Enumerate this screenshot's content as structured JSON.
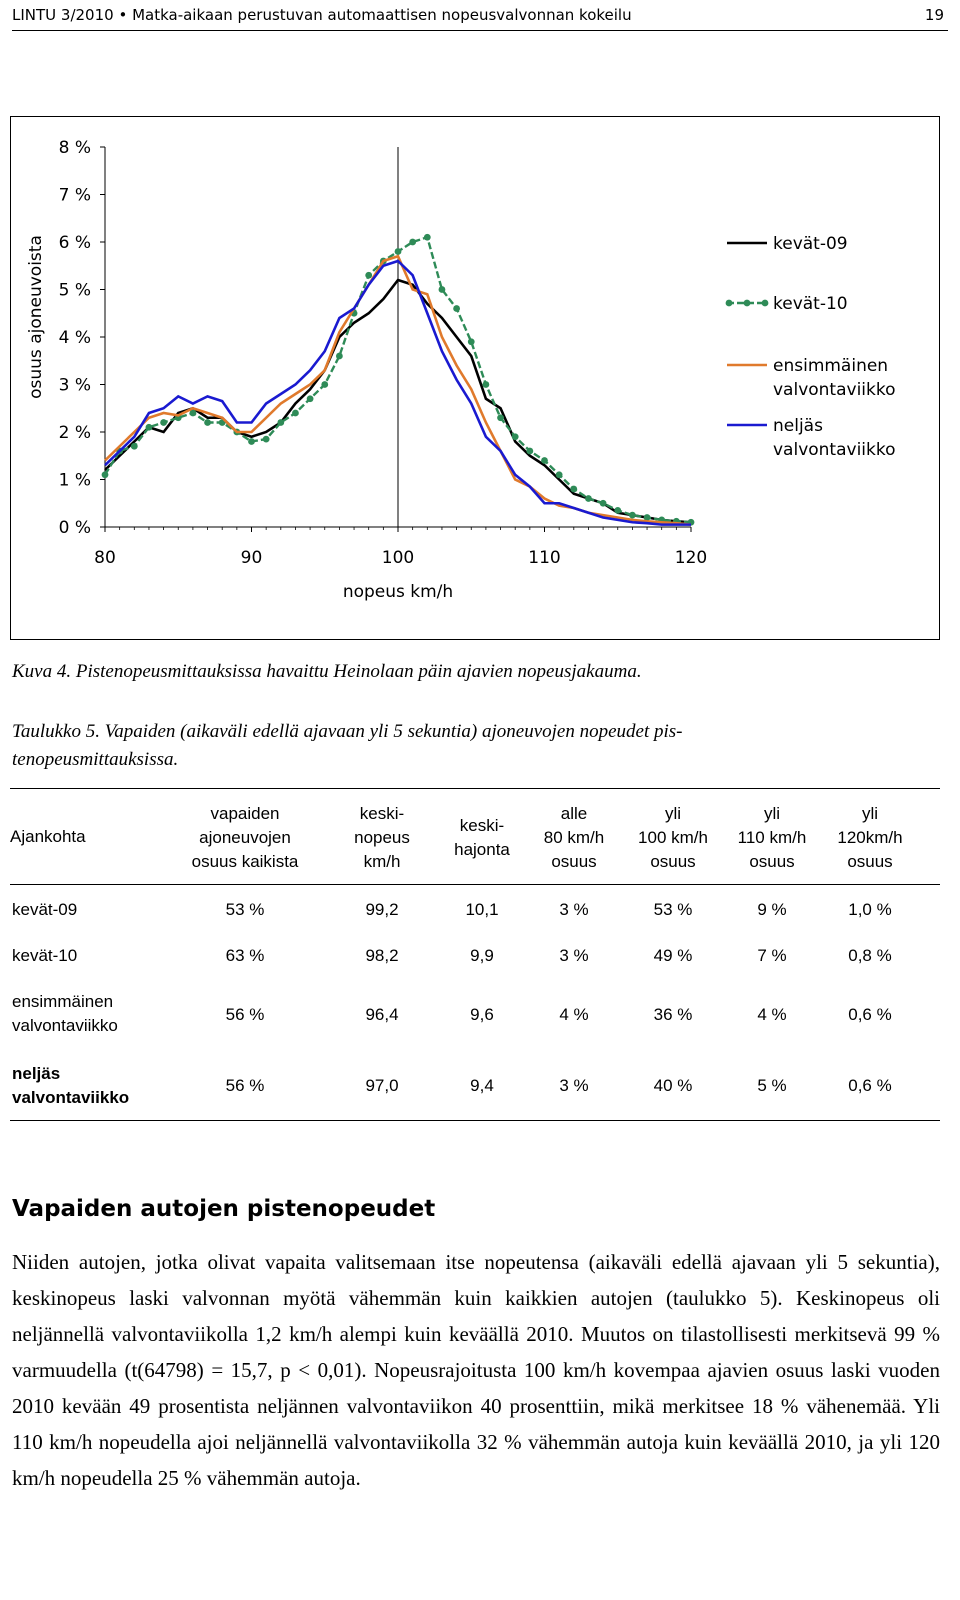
{
  "header": {
    "left": "LINTU 3/2010 • Matka-aikaan perustuvan automaattisen nopeusvalvonnan kokeilu",
    "page": "19"
  },
  "chart_data": {
    "type": "line",
    "x": [
      80,
      81,
      82,
      83,
      84,
      85,
      86,
      87,
      88,
      89,
      90,
      91,
      92,
      93,
      94,
      95,
      96,
      97,
      98,
      99,
      100,
      101,
      102,
      103,
      104,
      105,
      106,
      107,
      108,
      109,
      110,
      111,
      112,
      113,
      114,
      115,
      116,
      117,
      118,
      119,
      120
    ],
    "xlabel": "nopeus km/h",
    "ylabel": "osuus ajoneuvoista",
    "xlim": [
      80,
      120
    ],
    "ylim": [
      0,
      8
    ],
    "xticks": [
      "80",
      "90",
      "100",
      "110",
      "120"
    ],
    "yticks": [
      "0 %",
      "1 %",
      "2 %",
      "3 %",
      "4 %",
      "5 %",
      "6 %",
      "7 %",
      "8 %"
    ],
    "grid": "vertical at 100",
    "legend_position": "right",
    "series": [
      {
        "name": "kevät-09",
        "color": "#000000",
        "marker": "none",
        "values": [
          1.2,
          1.5,
          1.8,
          2.1,
          2.0,
          2.4,
          2.5,
          2.3,
          2.3,
          2.0,
          1.9,
          2.0,
          2.2,
          2.6,
          2.9,
          3.3,
          4.0,
          4.3,
          4.5,
          4.8,
          5.2,
          5.1,
          4.7,
          4.4,
          4.0,
          3.6,
          2.7,
          2.5,
          1.8,
          1.5,
          1.3,
          1.0,
          0.7,
          0.6,
          0.5,
          0.3,
          0.25,
          0.2,
          0.15,
          0.12,
          0.1
        ]
      },
      {
        "name": "kevät-10",
        "color": "#2e8b57",
        "marker": "dot",
        "values": [
          1.1,
          1.6,
          1.7,
          2.1,
          2.2,
          2.3,
          2.4,
          2.2,
          2.2,
          2.0,
          1.8,
          1.85,
          2.2,
          2.4,
          2.7,
          3.0,
          3.6,
          4.5,
          5.3,
          5.6,
          5.8,
          6.0,
          6.1,
          5.0,
          4.6,
          3.9,
          3.0,
          2.3,
          1.9,
          1.6,
          1.4,
          1.1,
          0.8,
          0.6,
          0.5,
          0.35,
          0.25,
          0.2,
          0.15,
          0.12,
          0.1
        ]
      },
      {
        "name": "ensimmäinen valvontaviikko",
        "color": "#e07a2c",
        "marker": "none",
        "values": [
          1.4,
          1.7,
          2.0,
          2.3,
          2.4,
          2.35,
          2.5,
          2.4,
          2.3,
          2.0,
          2.0,
          2.3,
          2.6,
          2.8,
          3.0,
          3.3,
          4.1,
          4.6,
          5.1,
          5.6,
          5.7,
          5.0,
          4.9,
          4.0,
          3.4,
          2.9,
          2.2,
          1.6,
          1.0,
          0.85,
          0.6,
          0.45,
          0.4,
          0.3,
          0.25,
          0.2,
          0.15,
          0.12,
          0.1,
          0.08,
          0.05
        ]
      },
      {
        "name": "neljäs valvontaviikko",
        "color": "#1a1ad0",
        "marker": "none",
        "values": [
          1.3,
          1.6,
          1.9,
          2.4,
          2.5,
          2.75,
          2.6,
          2.75,
          2.65,
          2.2,
          2.2,
          2.6,
          2.8,
          3.0,
          3.3,
          3.7,
          4.4,
          4.6,
          5.1,
          5.5,
          5.6,
          5.3,
          4.5,
          3.7,
          3.1,
          2.6,
          1.9,
          1.6,
          1.1,
          0.85,
          0.5,
          0.5,
          0.4,
          0.3,
          0.2,
          0.15,
          0.1,
          0.08,
          0.05,
          0.05,
          0.05
        ]
      }
    ]
  },
  "caption": "Kuva 4. Pistenopeusmittauksissa havaittu Heinolaan päin ajavien nopeusjakauma.",
  "table": {
    "title_line1": "Taulukko 5. Vapaiden (aikaväli edellä ajavaan yli 5 sekuntia) ajoneuvojen nopeudet pis-",
    "title_line2": "tenopeusmittauksissa.",
    "headers": {
      "c0": "Ajankohta",
      "c1_1": "vapaiden",
      "c1_2": "ajoneuvojen",
      "c1_3": "osuus kaikista",
      "c2_1": "keski-",
      "c2_2": "nopeus",
      "c2_3": "km/h",
      "c3_1": "keski-",
      "c3_2": "hajonta",
      "c4_1": "alle",
      "c4_2": "80 km/h",
      "c4_3": "osuus",
      "c5_1": "yli",
      "c5_2": "100 km/h",
      "c5_3": "osuus",
      "c6_1": "yli",
      "c6_2": "110 km/h",
      "c6_3": "osuus",
      "c7_1": "yli",
      "c7_2": "120km/h",
      "c7_3": "osuus"
    },
    "rows": [
      {
        "label1": "kevät-09",
        "label2": "",
        "cells": [
          "53 %",
          "99,2",
          "10,1",
          "3 %",
          "53 %",
          "9 %",
          "1,0 %"
        ]
      },
      {
        "label1": "kevät-10",
        "label2": "",
        "cells": [
          "63 %",
          "98,2",
          "9,9",
          "3 %",
          "49 %",
          "7 %",
          "0,8 %"
        ]
      },
      {
        "label1": "ensimmäinen",
        "label2": "valvontaviikko",
        "cells": [
          "56 %",
          "96,4",
          "9,6",
          "4 %",
          "36 %",
          "4 %",
          "0,6 %"
        ]
      },
      {
        "label1": "neljäs",
        "label2": "valvontaviikko",
        "cells": [
          "56 %",
          "97,0",
          "9,4",
          "3 %",
          "40 %",
          "5 %",
          "0,6 %"
        ]
      }
    ]
  },
  "section": {
    "heading": "Vapaiden autojen pistenopeudet",
    "paragraph": "Niiden autojen, jotka olivat vapaita valitsemaan itse nopeutensa (aikaväli edellä ajavaan yli 5 sekuntia), keskinopeus laski valvonnan myötä vähemmän kuin kaikkien autojen (taulukko 5). Keskinopeus oli neljännellä valvontaviikolla 1,2 km/h alempi kuin keväällä 2010. Muutos on tilastollisesti merkitsevä 99 % varmuudella (t(64798) = 15,7, p < 0,01). Nopeusrajoitusta 100 km/h kovempaa ajavien osuus laski vuoden 2010 kevään 49 prosentista neljännen valvontaviikon 40 prosenttiin, mikä merkitsee 18 % vähenemää. Yli 110 km/h nopeudella ajoi neljännellä valvontaviikolla 32 % vähemmän autoja kuin keväällä 2010, ja yli 120 km/h nopeudella 25 % vähemmän autoja."
  }
}
